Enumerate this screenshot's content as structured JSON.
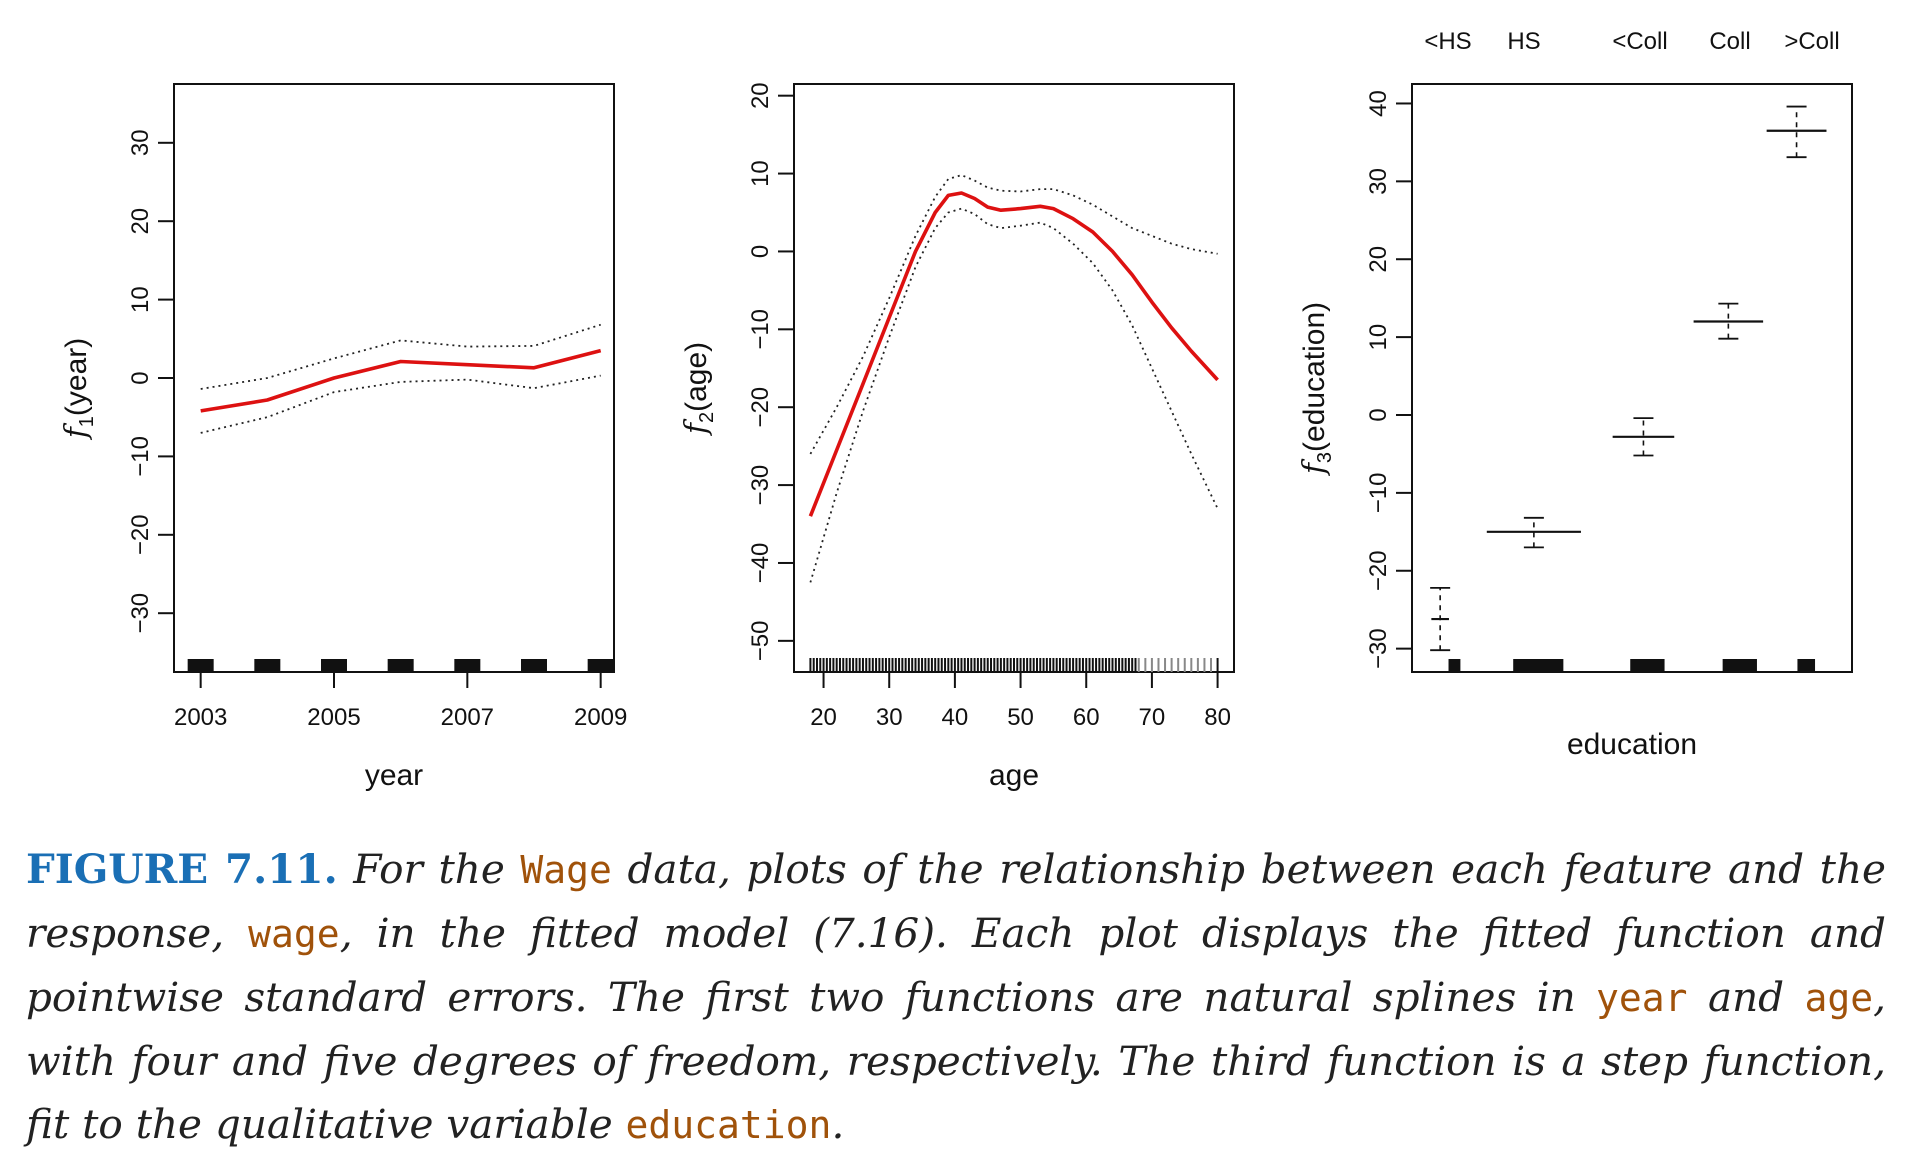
{
  "chart_data": [
    {
      "type": "line",
      "xlabel": "year",
      "ylabel_fn": "f",
      "ylabel_sub": "1",
      "ylabel_arg": "(year)",
      "xlim": [
        2002.6,
        2009.2
      ],
      "ylim": [
        -37.5,
        37.5
      ],
      "xticks": [
        2003,
        2005,
        2007,
        2009
      ],
      "yticks": [
        -30,
        -20,
        -10,
        0,
        10,
        20,
        30
      ],
      "fit": {
        "x": [
          2003,
          2004,
          2005,
          2006,
          2007,
          2008,
          2009
        ],
        "y": [
          -4.2,
          -2.8,
          0.0,
          2.1,
          1.7,
          1.3,
          3.5
        ]
      },
      "upper": {
        "x": [
          2003,
          2004,
          2005,
          2006,
          2007,
          2008,
          2009
        ],
        "y": [
          -1.4,
          0.0,
          2.5,
          4.8,
          4.0,
          4.1,
          6.8
        ]
      },
      "lower": {
        "x": [
          2003,
          2004,
          2005,
          2006,
          2007,
          2008,
          2009
        ],
        "y": [
          -7.0,
          -5.0,
          -1.8,
          -0.5,
          -0.2,
          -1.3,
          0.3
        ]
      },
      "rug": [
        2003,
        2004,
        2005,
        2006,
        2007,
        2008,
        2009
      ],
      "fit_color": "#dd1111"
    },
    {
      "type": "line",
      "xlabel": "age",
      "ylabel_fn": "f",
      "ylabel_sub": "2",
      "ylabel_arg": "(age)",
      "xlim": [
        15.5,
        82.5
      ],
      "ylim": [
        -54,
        21.5
      ],
      "xticks": [
        20,
        30,
        40,
        50,
        60,
        70,
        80
      ],
      "yticks": [
        -50,
        -40,
        -30,
        -20,
        -10,
        0,
        10,
        20
      ],
      "fit": {
        "x": [
          18,
          22,
          26,
          30,
          34,
          37,
          39,
          41,
          43,
          45,
          47,
          50,
          53,
          55,
          58,
          61,
          64,
          67,
          70,
          73,
          76,
          80
        ],
        "y": [
          -34,
          -25.5,
          -17,
          -8.5,
          0,
          5,
          7.2,
          7.5,
          6.8,
          5.7,
          5.3,
          5.5,
          5.8,
          5.5,
          4.2,
          2.5,
          0,
          -3,
          -6.5,
          -9.8,
          -12.8,
          -16.5
        ]
      },
      "upper": {
        "x": [
          18,
          22,
          26,
          30,
          34,
          37,
          39,
          41,
          43,
          45,
          47,
          50,
          53,
          55,
          58,
          61,
          64,
          67,
          70,
          73,
          76,
          80
        ],
        "y": [
          -26,
          -20,
          -13.5,
          -6,
          2,
          7,
          9.3,
          9.8,
          9.1,
          8.2,
          7.8,
          7.7,
          8.0,
          8.0,
          7.2,
          6.0,
          4.5,
          3.0,
          2.0,
          1.0,
          0.3,
          -0.3
        ]
      },
      "lower": {
        "x": [
          18,
          22,
          26,
          30,
          34,
          37,
          39,
          41,
          43,
          45,
          47,
          50,
          53,
          55,
          58,
          61,
          64,
          67,
          70,
          73,
          76,
          80
        ],
        "y": [
          -42.5,
          -31,
          -20.5,
          -11,
          -2,
          3,
          5,
          5.5,
          4.8,
          3.5,
          3.0,
          3.3,
          3.7,
          3.0,
          1.0,
          -1.5,
          -5,
          -9.5,
          -15,
          -20.5,
          -26,
          -33
        ]
      },
      "rug_from": 18,
      "rug_to": 80,
      "fit_color": "#dd1111"
    },
    {
      "type": "step",
      "xlabel": "education",
      "ylabel_fn": "f",
      "ylabel_sub": "3",
      "ylabel_arg": "(education)",
      "xlim": [
        0,
        100
      ],
      "ylim": [
        -33,
        42.5
      ],
      "yticks": [
        -30,
        -20,
        -10,
        0,
        10,
        20,
        30,
        40
      ],
      "categories": [
        "<HS",
        "HS",
        "<Coll",
        "Coll",
        ">Coll"
      ],
      "levels": [
        {
          "x0": 4.4,
          "x1": 8.4,
          "y": -26.2,
          "lo": -30.2,
          "hi": -22.2
        },
        {
          "x0": 17.0,
          "x1": 38.4,
          "y": -15.0,
          "lo": -17.0,
          "hi": -13.2
        },
        {
          "x0": 45.6,
          "x1": 59.6,
          "y": -2.8,
          "lo": -5.2,
          "hi": -0.4
        },
        {
          "x0": 64.0,
          "x1": 79.8,
          "y": 12.0,
          "lo": 9.8,
          "hi": 14.3
        },
        {
          "x0": 80.6,
          "x1": 94.2,
          "y": 36.5,
          "lo": 33.1,
          "hi": 39.6
        }
      ],
      "rug": [
        {
          "x0": 8.3,
          "x1": 11.0
        },
        {
          "x0": 23.0,
          "x1": 34.4
        },
        {
          "x0": 49.6,
          "x1": 57.4
        },
        {
          "x0": 70.6,
          "x1": 78.4
        },
        {
          "x0": 87.6,
          "x1": 91.6
        }
      ]
    }
  ],
  "caption": {
    "label": "FIGURE 7.11.",
    "t1": " For the ",
    "c1": "Wage",
    "t2": " data, plots of the relationship between each feature and the response, ",
    "c2": "wage",
    "t3": ", in the fitted model (7.16). Each plot displays the fitted function and pointwise standard errors. The first two functions are natural splines in ",
    "c3": "year",
    "t4": " and ",
    "c4": "age",
    "t5": ", with four and five degrees of freedom, respectively. The third function is a step function, fit to the qualitative variable ",
    "c5": "education",
    "t6": "."
  }
}
